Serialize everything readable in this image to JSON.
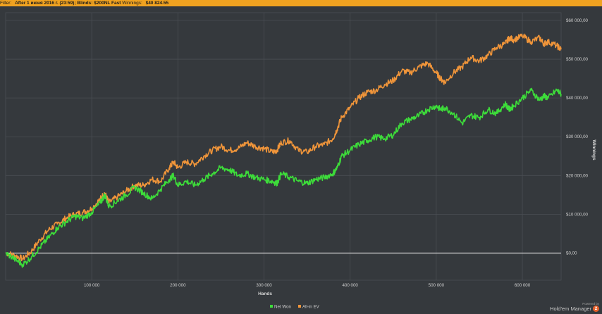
{
  "filter": {
    "prefix": "Filter:",
    "text": "After 1 июня 2016 г. (23:59); Blinds: $200NL Fast",
    "winnings_label": "Winnings:",
    "winnings_value": "$40 824.55"
  },
  "brand": {
    "powered_by": "Powered by",
    "name": "Hold'em Manager",
    "version": "2"
  },
  "chart_data": {
    "type": "line",
    "xlabel": "Hands",
    "ylabel": "Winnings",
    "xlim": [
      0,
      645000
    ],
    "ylim": [
      -7000,
      62000
    ],
    "x_ticks": [
      100000,
      200000,
      300000,
      400000,
      500000,
      600000
    ],
    "x_tick_labels": [
      "100 000",
      "200 000",
      "300 000",
      "400 000",
      "500 000",
      "600 000"
    ],
    "y_ticks": [
      0,
      10000,
      20000,
      30000,
      40000,
      50000,
      60000
    ],
    "y_tick_labels": [
      "$0,00",
      "$10 000,00",
      "$20 000,00",
      "$30 000,00",
      "$40 000,00",
      "$50 000,00",
      "$60 000,00"
    ],
    "grid": true,
    "legend_position": "bottom-center",
    "colors": {
      "background": "#35393d",
      "grid": "#4a4e53",
      "zero_line": "#e6e6e6"
    },
    "series": [
      {
        "name": "Net Won",
        "color": "#3ddc3a",
        "x": [
          0,
          10000,
          20000,
          30000,
          40000,
          50000,
          60000,
          70000,
          80000,
          90000,
          100000,
          110000,
          115000,
          120000,
          130000,
          140000,
          150000,
          160000,
          170000,
          180000,
          190000,
          195000,
          200000,
          210000,
          220000,
          230000,
          240000,
          250000,
          260000,
          270000,
          280000,
          290000,
          300000,
          310000,
          315000,
          320000,
          330000,
          340000,
          350000,
          360000,
          370000,
          380000,
          385000,
          390000,
          400000,
          410000,
          420000,
          430000,
          440000,
          450000,
          460000,
          470000,
          480000,
          490000,
          500000,
          505000,
          510000,
          520000,
          530000,
          540000,
          550000,
          560000,
          570000,
          580000,
          585000,
          590000,
          600000,
          610000,
          620000,
          625000,
          630000,
          640000,
          645000
        ],
        "y": [
          0,
          -1500,
          -3000,
          -1000,
          1500,
          4000,
          6500,
          8000,
          9500,
          9000,
          10500,
          13000,
          15000,
          12000,
          13500,
          15000,
          17000,
          15500,
          14000,
          16500,
          19000,
          20000,
          17500,
          18500,
          17500,
          19000,
          20500,
          22000,
          21500,
          20000,
          20500,
          19500,
          19000,
          18500,
          18000,
          20500,
          19500,
          18500,
          18000,
          19000,
          19500,
          20500,
          22000,
          25000,
          26500,
          28000,
          29000,
          30000,
          29500,
          30500,
          33500,
          34500,
          35500,
          37000,
          38000,
          37000,
          37500,
          36000,
          33500,
          35500,
          35000,
          37000,
          36000,
          38500,
          37000,
          38000,
          40000,
          42000,
          39500,
          40500,
          40000,
          42000,
          41000
        ]
      },
      {
        "name": "All-in EV",
        "color": "#f0953a",
        "x": [
          0,
          10000,
          20000,
          30000,
          40000,
          50000,
          60000,
          70000,
          80000,
          90000,
          100000,
          110000,
          115000,
          120000,
          130000,
          140000,
          150000,
          160000,
          170000,
          180000,
          190000,
          195000,
          200000,
          210000,
          220000,
          230000,
          240000,
          250000,
          260000,
          270000,
          280000,
          290000,
          300000,
          310000,
          315000,
          320000,
          330000,
          340000,
          350000,
          360000,
          370000,
          380000,
          385000,
          390000,
          400000,
          410000,
          420000,
          430000,
          440000,
          450000,
          460000,
          470000,
          480000,
          490000,
          500000,
          505000,
          510000,
          520000,
          530000,
          540000,
          550000,
          560000,
          570000,
          580000,
          585000,
          590000,
          600000,
          610000,
          620000,
          625000,
          630000,
          640000,
          645000
        ],
        "y": [
          0,
          -500,
          -1500,
          500,
          3500,
          6000,
          7500,
          9000,
          10000,
          10500,
          11500,
          14000,
          15500,
          13000,
          14500,
          16000,
          17500,
          17500,
          19000,
          18500,
          22000,
          23500,
          22000,
          23500,
          23000,
          25000,
          26500,
          27500,
          26500,
          27000,
          28500,
          27500,
          27000,
          26000,
          26500,
          28500,
          29000,
          26500,
          26000,
          27500,
          28000,
          29500,
          32000,
          35000,
          37500,
          40000,
          41500,
          42000,
          43500,
          44500,
          47000,
          46500,
          48000,
          49000,
          46500,
          45000,
          44000,
          46500,
          48000,
          50500,
          49500,
          51000,
          53000,
          54000,
          55500,
          55000,
          56000,
          54500,
          55500,
          54000,
          54500,
          53500,
          52500
        ]
      }
    ]
  }
}
